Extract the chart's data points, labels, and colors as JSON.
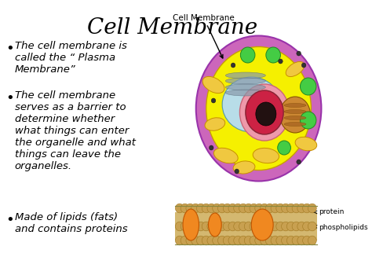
{
  "title": "Cell Membrane",
  "background_color": "#ffffff",
  "bullet_points": [
    "The cell membrane is\ncalled the “ Plasma\nMembrane”",
    "The cell membrane\nserves as a barrier to\ndetermine whether\nwhat things can enter\nthe organelle and what\nthings can leave the\norganelles.",
    "Made of lipids (fats)\nand contains proteins"
  ],
  "bullet_fontsize": 9.5,
  "cell_label": "Cell Membrane",
  "cell_label_fontsize": 7.5,
  "membrane_color": "#cc66bb",
  "membrane_edge": "#9933aa",
  "cytoplasm_color": "#f5f000",
  "cytoplasm_edge": "#c8a000",
  "nucleus_bg_color": "#aaddee",
  "nucleus_outer_color": "#ee99aa",
  "nucleus_inner_color": "#cc2244",
  "nucleolus_color": "#221111",
  "er_color": "#99ccdd",
  "er_edge": "#3388aa",
  "golgi_color": "#cc8833",
  "golgi_edge": "#885500",
  "mito_color": "#f0c840",
  "mito_edge": "#c89000",
  "lyso_color": "#44cc44",
  "lyso_edge": "#228822",
  "bilayer_tan": "#d4b870",
  "bilayer_bead": "#c8a050",
  "bilayer_bead_edge": "#a07820",
  "protein_color": "#f08820",
  "protein_edge": "#c05500"
}
